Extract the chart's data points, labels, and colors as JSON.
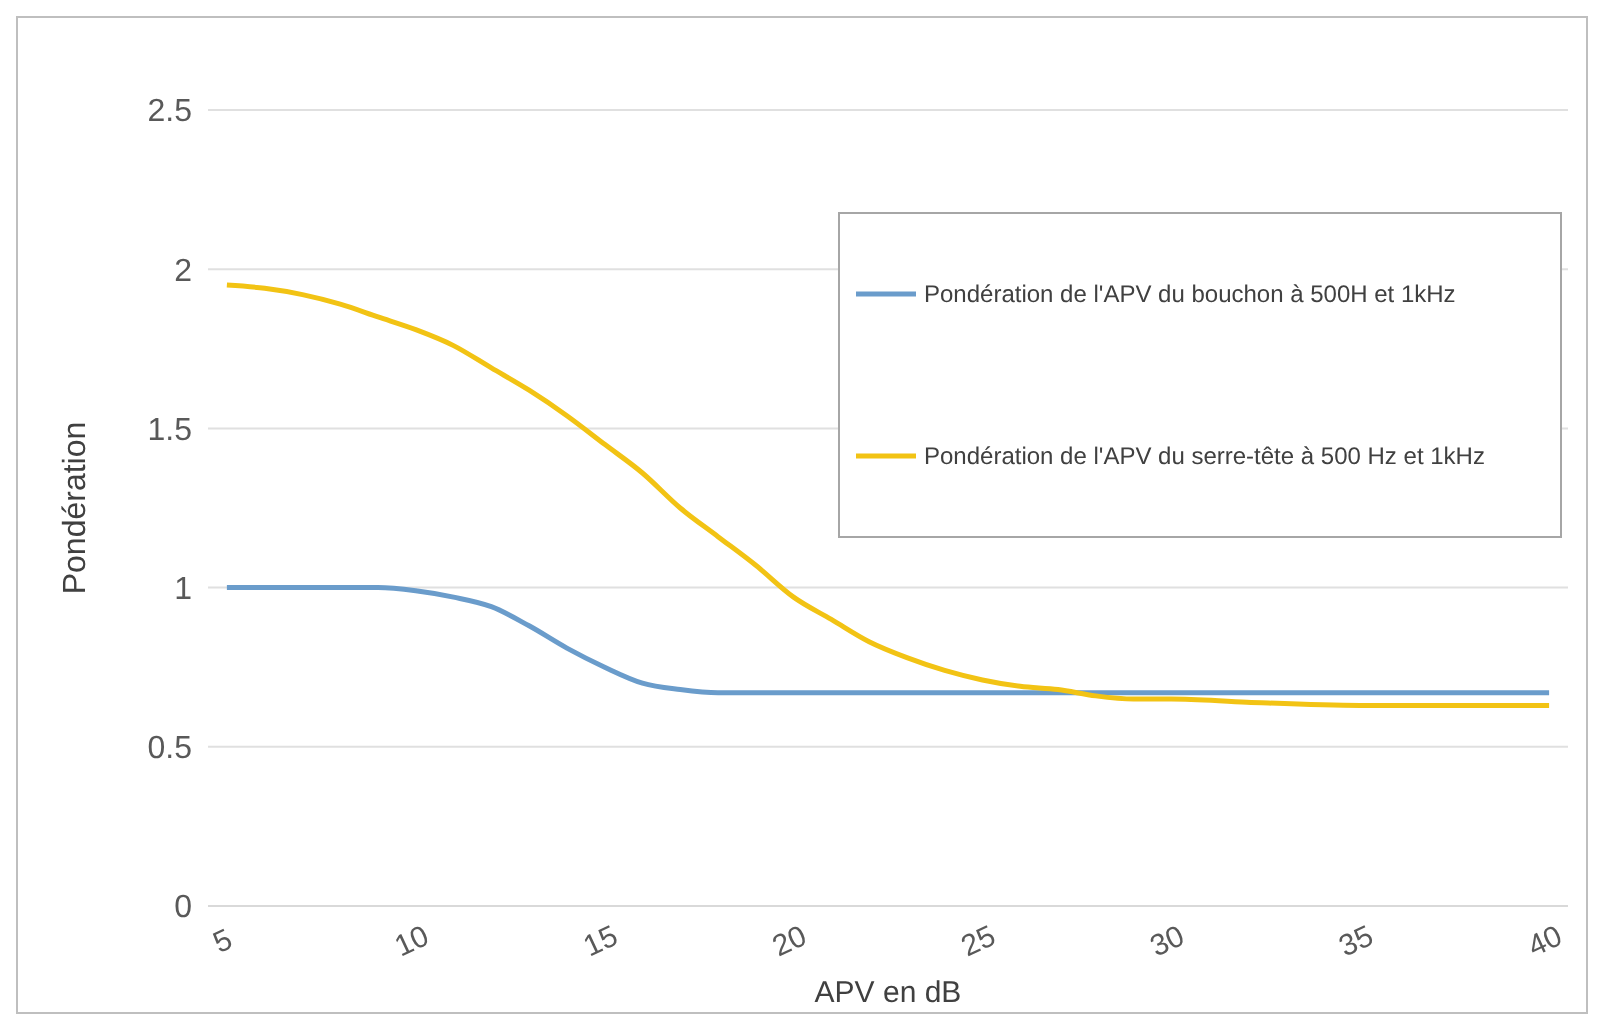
{
  "chart_data": {
    "type": "line",
    "xlabel": "APV en dB",
    "ylabel": "Pondération",
    "x": [
      5,
      6,
      7,
      8,
      9,
      10,
      11,
      12,
      13,
      14,
      15,
      16,
      17,
      18,
      19,
      20,
      21,
      22,
      23,
      24,
      25,
      26,
      27,
      28,
      29,
      30,
      32,
      35,
      38,
      40
    ],
    "series": [
      {
        "name": "Pondération de l'APV du bouchon à 500H et 1kHz",
        "color": "#6a9ccb",
        "values": [
          1.0,
          1.0,
          1.0,
          1.0,
          1.0,
          0.99,
          0.97,
          0.94,
          0.88,
          0.81,
          0.75,
          0.7,
          0.68,
          0.67,
          0.67,
          0.67,
          0.67,
          0.67,
          0.67,
          0.67,
          0.67,
          0.67,
          0.67,
          0.67,
          0.67,
          0.67,
          0.67,
          0.67,
          0.67,
          0.67
        ]
      },
      {
        "name": "Pondération de l'APV du serre-tête à 500 Hz et 1kHz",
        "color": "#f2c314",
        "values": [
          1.95,
          1.94,
          1.92,
          1.89,
          1.85,
          1.81,
          1.76,
          1.69,
          1.62,
          1.54,
          1.45,
          1.36,
          1.25,
          1.16,
          1.07,
          0.97,
          0.9,
          0.83,
          0.78,
          0.74,
          0.71,
          0.69,
          0.68,
          0.66,
          0.65,
          0.65,
          0.64,
          0.63,
          0.63,
          0.63
        ]
      }
    ],
    "xlim": [
      4.5,
      40.5
    ],
    "xticks": [
      5,
      10,
      15,
      20,
      25,
      30,
      35,
      40
    ],
    "ylim": [
      0,
      2.5
    ],
    "yticks": [
      0,
      0.5,
      1,
      1.5,
      2,
      2.5
    ],
    "grid": "y",
    "legend": "top right",
    "marker": "none",
    "line_style": "solid"
  }
}
